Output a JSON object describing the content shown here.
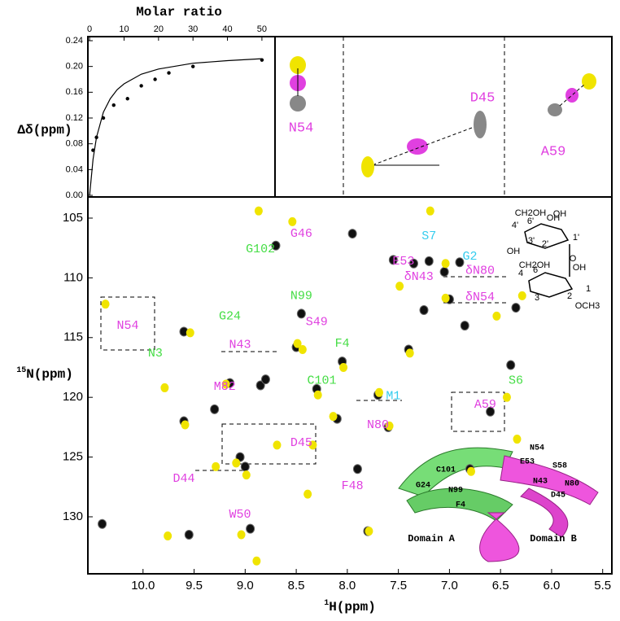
{
  "chart_data": [
    {
      "type": "scatter",
      "x_label": "Molar ratio",
      "y_label": "Δδ(ppm)",
      "x": [
        1,
        2,
        4,
        7,
        11,
        15,
        19,
        23,
        30,
        50
      ],
      "values": [
        0.07,
        0.09,
        0.12,
        0.14,
        0.15,
        0.17,
        0.18,
        0.19,
        0.2,
        0.21
      ],
      "fit": {
        "x": [
          0,
          1,
          2,
          4,
          6,
          8,
          10,
          15,
          20,
          30,
          40,
          50
        ],
        "values": [
          0,
          0.056,
          0.09,
          0.129,
          0.15,
          0.164,
          0.173,
          0.188,
          0.196,
          0.205,
          0.209,
          0.212
        ]
      },
      "color": "#000000",
      "xlim": [
        -0.5,
        53.8
      ],
      "xticks": [
        0,
        10,
        20,
        30,
        40,
        50
      ],
      "ylim": [
        -0.0025,
        0.2463
      ],
      "yticks": [
        {
          "value": 0,
          "label": "0.00"
        },
        {
          "value": 0.04,
          "label": "0.04"
        },
        {
          "value": 0.08,
          "label": "0.08"
        },
        {
          "value": 0.12,
          "label": "0.12"
        },
        {
          "value": 0.16,
          "label": "0.16"
        },
        {
          "value": 0.2,
          "label": "0.20"
        },
        {
          "value": 0.24,
          "label": "0.24"
        }
      ]
    },
    {
      "type": "peaks",
      "annotations": [
        {
          "text": "N54",
          "color": "#e040e0"
        },
        {
          "text": "D45",
          "color": "#e040e0"
        },
        {
          "text": "A59",
          "color": "#e040e0"
        }
      ]
    },
    {
      "type": "scatter",
      "x_label_sup": "1",
      "x_label": "H(ppm)",
      "y_label_sup": "15",
      "y_label": "N(ppm)",
      "xlim": [
        10.54,
        5.41
      ],
      "xticks": [
        {
          "value": 10,
          "label": "10.0"
        },
        9.5,
        {
          "value": 9,
          "label": "9.0"
        },
        8.5,
        {
          "value": 8,
          "label": "8.0"
        },
        7.5,
        {
          "value": 7,
          "label": "7.0"
        },
        6.5,
        {
          "value": 6,
          "label": "6.0"
        },
        5.5
      ],
      "ylim": [
        103.23,
        134.77
      ],
      "yticks": [
        105,
        110,
        115,
        120,
        125,
        130
      ],
      "series": [
        {
          "color": "#111111",
          "x": [
            10.4,
            9.6,
            9.6,
            9.55,
            9.0,
            9.05,
            8.95,
            8.7,
            8.5,
            8.45,
            8.3,
            8.1,
            8.05,
            7.95,
            7.7,
            7.55,
            7.35,
            7.2,
            7.05,
            7.0,
            6.6,
            6.4,
            7.4,
            7.8,
            6.85,
            7.6,
            6.8,
            8.85,
            9.3,
            7.25,
            6.35,
            7.9,
            8.8,
            9.15,
            6.9
          ],
          "values": [
            130.6,
            114.5,
            122,
            131.5,
            125.8,
            125,
            131,
            107.3,
            115.8,
            113,
            119.3,
            121.8,
            117,
            106.3,
            119.8,
            108.5,
            108.8,
            108.6,
            109.5,
            111.8,
            121.2,
            117.3,
            116,
            131.2,
            114,
            122.5,
            126,
            119,
            121,
            112.7,
            112.5,
            126,
            118.5,
            118.8,
            108.7
          ]
        },
        {
          "color": "#f0e400",
          "x": [
            10.38,
            9.77,
            9.55,
            9.8,
            8.88,
            8.55,
            8.5,
            8.45,
            8.05,
            8.15,
            7.2,
            7.05,
            6.45,
            6.35,
            7.05,
            6.55,
            7.4,
            7.8,
            8.7,
            9.1,
            9.0,
            9.05,
            8.9,
            7.6,
            6.8,
            8.3,
            9.2,
            9.3,
            7.5,
            8.4,
            6.3,
            7.7,
            8.35,
            9.6
          ],
          "values": [
            112.2,
            131.6,
            114.6,
            119.2,
            104.4,
            105.3,
            115.5,
            116,
            117.5,
            121.6,
            104.4,
            108.8,
            120,
            123.5,
            111.7,
            113.2,
            116.3,
            131.2,
            124,
            125.5,
            126.5,
            131.5,
            133.7,
            122.4,
            126.2,
            119.8,
            118.9,
            125.8,
            110.7,
            128.1,
            111.5,
            119.6,
            124,
            122.3
          ]
        }
      ],
      "annotations": [
        {
          "text": "G46",
          "x": 8.45,
          "y": 106.3,
          "color": "#e040e0"
        },
        {
          "text": "G102",
          "x": 8.85,
          "y": 107.6,
          "color": "#44dd44"
        },
        {
          "text": "S7",
          "x": 7.2,
          "y": 106.5,
          "color": "#33ccee"
        },
        {
          "text": "G2",
          "x": 6.8,
          "y": 108.2,
          "color": "#33ccee"
        },
        {
          "text": "E53",
          "x": 7.45,
          "y": 108.6,
          "color": "#e040e0"
        },
        {
          "text": "δN43",
          "x": 7.3,
          "y": 109.9,
          "color": "#e040e0"
        },
        {
          "text": "δN80",
          "x": 6.7,
          "y": 109.4,
          "color": "#e040e0"
        },
        {
          "text": "δN54",
          "x": 6.7,
          "y": 111.6,
          "color": "#e040e0"
        },
        {
          "text": "N54",
          "x": 10.15,
          "y": 114,
          "color": "#e040e0"
        },
        {
          "text": "N3",
          "x": 9.88,
          "y": 116.3,
          "color": "#44dd44"
        },
        {
          "text": "G24",
          "x": 9.15,
          "y": 113.2,
          "color": "#44dd44"
        },
        {
          "text": "N99",
          "x": 8.45,
          "y": 111.5,
          "color": "#44dd44"
        },
        {
          "text": "S49",
          "x": 8.3,
          "y": 113.7,
          "color": "#e040e0"
        },
        {
          "text": "F4",
          "x": 8.05,
          "y": 115.5,
          "color": "#44dd44"
        },
        {
          "text": "N43",
          "x": 9.05,
          "y": 115.6,
          "color": "#e040e0"
        },
        {
          "text": "M82",
          "x": 9.2,
          "y": 119.1,
          "color": "#e040e0"
        },
        {
          "text": "C101",
          "x": 8.25,
          "y": 118.6,
          "color": "#44dd44"
        },
        {
          "text": "M1",
          "x": 7.55,
          "y": 119.9,
          "color": "#33ccee"
        },
        {
          "text": "N80",
          "x": 7.7,
          "y": 122.3,
          "color": "#e040e0"
        },
        {
          "text": "A59",
          "x": 6.65,
          "y": 120.6,
          "color": "#e040e0"
        },
        {
          "text": "S6",
          "x": 6.35,
          "y": 118.6,
          "color": "#44dd44"
        },
        {
          "text": "D45",
          "x": 8.45,
          "y": 123.8,
          "color": "#e040e0"
        },
        {
          "text": "F48",
          "x": 7.95,
          "y": 127.4,
          "color": "#e040e0"
        },
        {
          "text": "D44",
          "x": 9.6,
          "y": 126.8,
          "color": "#e040e0"
        },
        {
          "text": "W50",
          "x": 9.05,
          "y": 129.8,
          "color": "#e040e0"
        }
      ],
      "inset_labels": [
        "Domain A",
        "Domain B",
        "N54",
        "E53",
        "S58",
        "C101",
        "N43",
        "N80",
        "G24",
        "N99",
        "D45",
        "F4"
      ],
      "sugar_labels": [
        "CH2OH",
        "OH",
        "OH",
        "4'",
        "6'",
        "3'",
        "2'",
        "1'",
        "OH",
        "O",
        "CH2OH",
        "OH",
        "4",
        "6",
        "3",
        "2",
        "1",
        "OCH3"
      ]
    }
  ]
}
